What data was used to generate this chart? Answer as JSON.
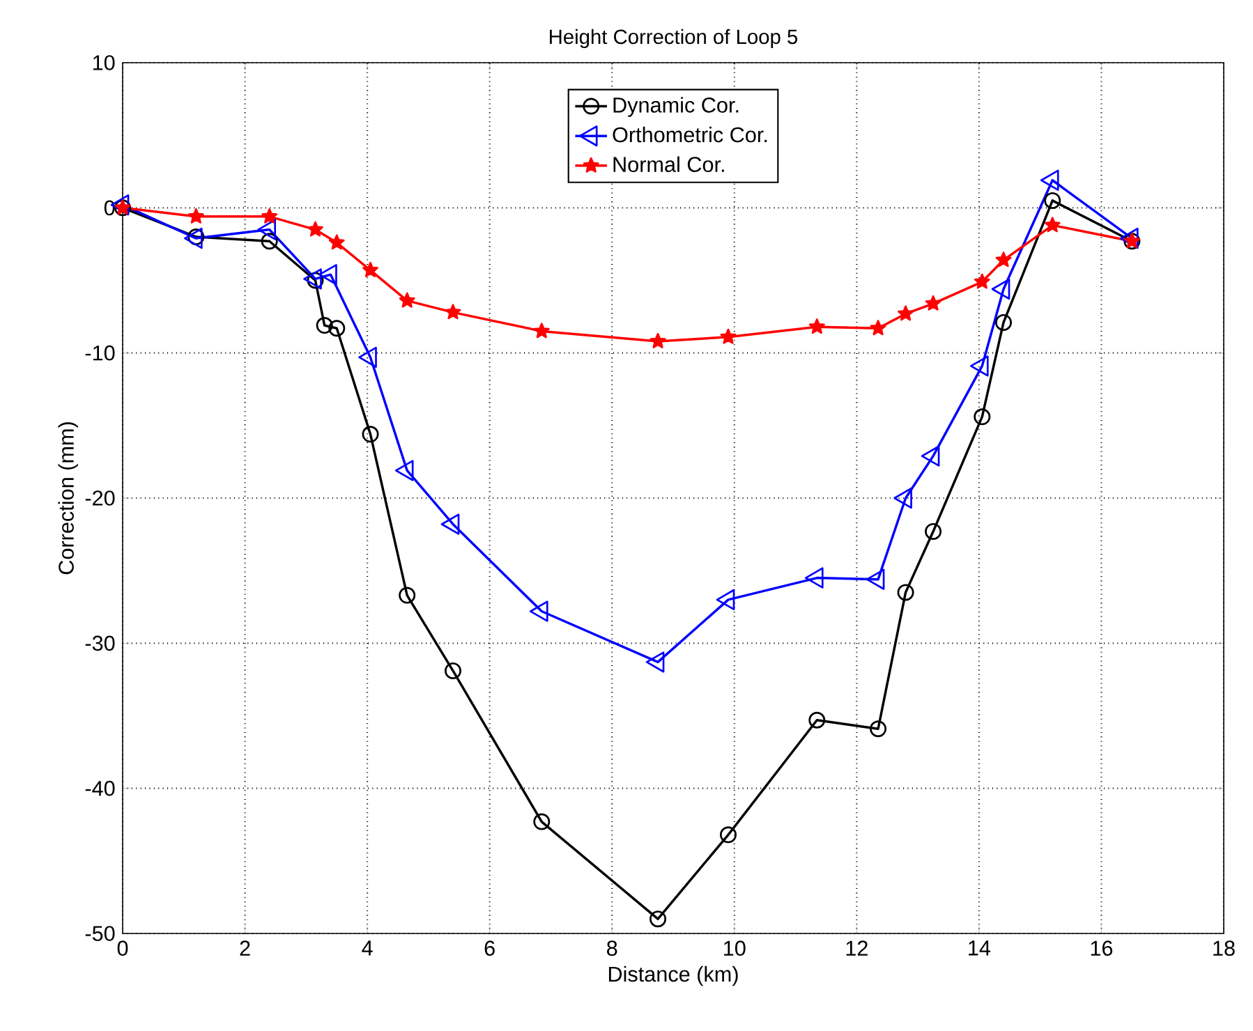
{
  "chart_data": {
    "type": "line",
    "title": "Height Correction of Loop 5",
    "xlabel": "Distance (km)",
    "ylabel": "Correction (mm)",
    "xlim": [
      0,
      18
    ],
    "xticks": [
      0,
      2,
      4,
      6,
      8,
      10,
      12,
      14,
      16,
      18
    ],
    "ylim": [
      -50,
      10
    ],
    "yticks": [
      -50,
      -40,
      -30,
      -20,
      -10,
      0,
      10
    ],
    "grid": true,
    "legend": "top",
    "line_style": "solid",
    "series": [
      {
        "name": "Dynamic Cor.",
        "color": "#000000",
        "marker": "circle",
        "x": [
          0,
          1.2,
          2.4,
          3.15,
          3.3,
          3.5,
          4.05,
          4.65,
          5.4,
          6.85,
          8.75,
          9.9,
          11.35,
          12.35,
          12.8,
          13.25,
          14.05,
          14.4,
          15.2,
          16.5
        ],
        "values": [
          0,
          -2,
          -2.3,
          -5,
          -8.1,
          -8.3,
          -15.6,
          -26.7,
          -31.9,
          -42.3,
          -49,
          -43.2,
          -35.3,
          -35.9,
          -26.5,
          -22.3,
          -14.4,
          -7.9,
          0.5,
          -2.3
        ]
      },
      {
        "name": "Orthometric Cor.",
        "color": "#0000ff",
        "marker": "triangle",
        "x": [
          0,
          1.2,
          2.4,
          3.15,
          3.4,
          4.05,
          4.65,
          5.4,
          6.85,
          8.75,
          9.9,
          11.35,
          12.35,
          12.8,
          13.25,
          14.05,
          14.4,
          15.2,
          16.5
        ],
        "values": [
          0.2,
          -2.1,
          -1.5,
          -4.9,
          -4.6,
          -10.3,
          -18.1,
          -21.8,
          -27.8,
          -31.3,
          -27,
          -25.5,
          -25.6,
          -20,
          -17.1,
          -10.9,
          -5.6,
          1.9,
          -2.1
        ]
      },
      {
        "name": "Normal Cor.",
        "color": "#ff0000",
        "marker": "star",
        "x": [
          0,
          1.2,
          2.4,
          3.15,
          3.5,
          4.05,
          4.65,
          5.4,
          6.85,
          8.75,
          9.9,
          11.35,
          12.35,
          12.8,
          13.25,
          14.05,
          14.4,
          15.2,
          16.5
        ],
        "values": [
          0,
          -0.6,
          -0.6,
          -1.5,
          -2.4,
          -4.3,
          -6.4,
          -7.2,
          -8.5,
          -9.2,
          -8.9,
          -8.2,
          -8.3,
          -7.3,
          -6.6,
          -5.1,
          -3.6,
          -1.2,
          -2.3
        ]
      }
    ]
  }
}
